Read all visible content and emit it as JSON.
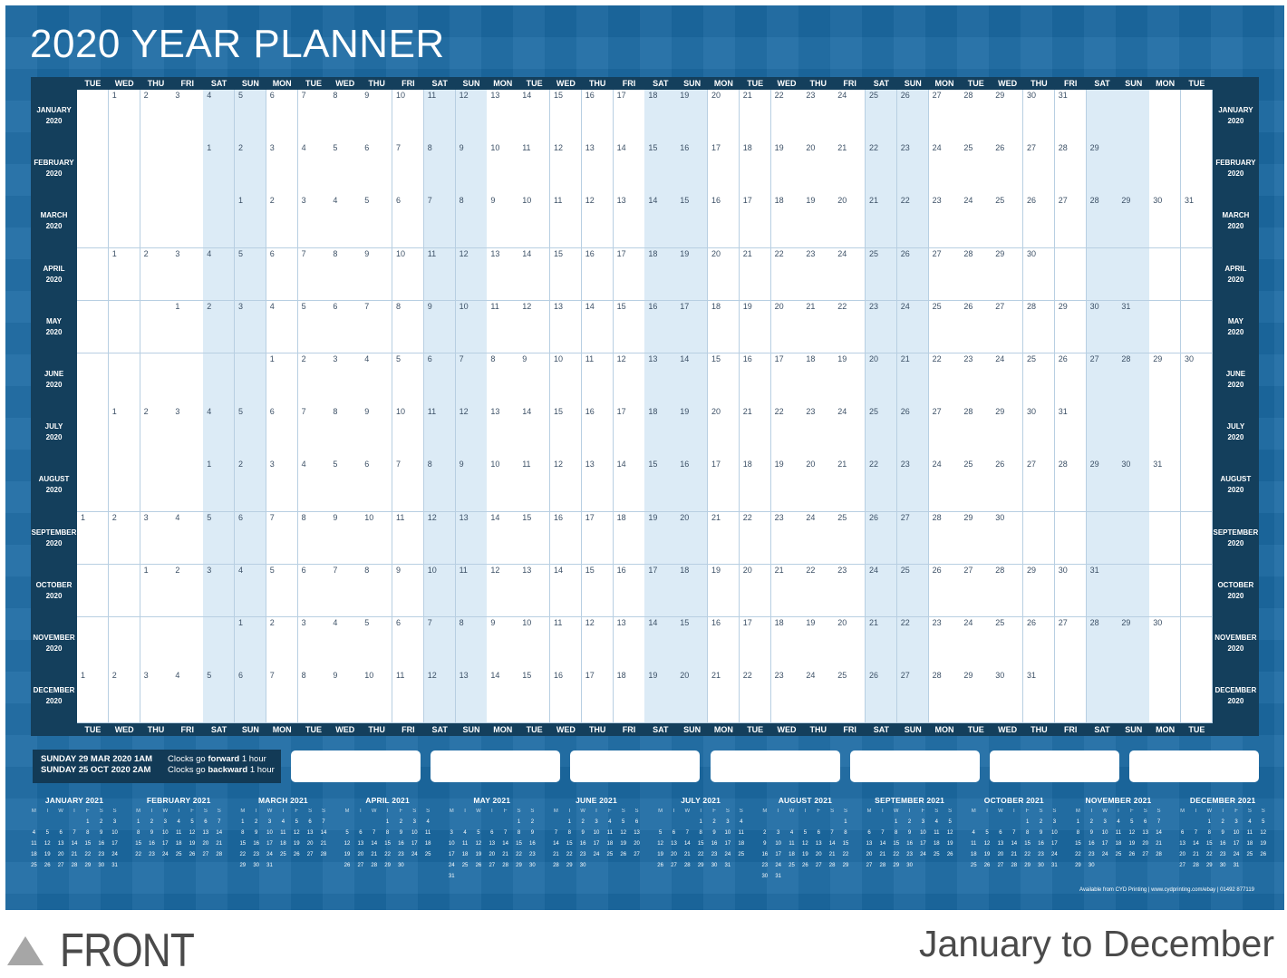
{
  "title": "2020 YEAR PLANNER",
  "day_headers": [
    "TUE",
    "WED",
    "THU",
    "FRI",
    "SAT",
    "SUN",
    "MON",
    "TUE",
    "WED",
    "THU",
    "FRI",
    "SAT",
    "SUN",
    "MON",
    "TUE",
    "WED",
    "THU",
    "FRI",
    "SAT",
    "SUN",
    "MON",
    "TUE",
    "WED",
    "THU",
    "FRI",
    "SAT",
    "SUN",
    "MON",
    "TUE",
    "WED",
    "THU",
    "FRI",
    "SAT",
    "SUN",
    "MON",
    "TUE"
  ],
  "months": [
    {
      "name": "JANUARY",
      "year": "2020",
      "start": 1,
      "days": 31
    },
    {
      "name": "FEBRUARY",
      "year": "2020",
      "start": 4,
      "days": 29
    },
    {
      "name": "MARCH",
      "year": "2020",
      "start": 5,
      "days": 31
    },
    {
      "name": "APRIL",
      "year": "2020",
      "start": 1,
      "days": 30
    },
    {
      "name": "MAY",
      "year": "2020",
      "start": 3,
      "days": 31
    },
    {
      "name": "JUNE",
      "year": "2020",
      "start": 6,
      "days": 30
    },
    {
      "name": "JULY",
      "year": "2020",
      "start": 1,
      "days": 31
    },
    {
      "name": "AUGUST",
      "year": "2020",
      "start": 4,
      "days": 31
    },
    {
      "name": "SEPTEMBER",
      "year": "2020",
      "start": 0,
      "days": 30
    },
    {
      "name": "OCTOBER",
      "year": "2020",
      "start": 2,
      "days": 31
    },
    {
      "name": "NOVEMBER",
      "year": "2020",
      "start": 5,
      "days": 30
    },
    {
      "name": "DECEMBER",
      "year": "2020",
      "start": 0,
      "days": 31
    }
  ],
  "dst": [
    {
      "date": "SUNDAY 29 MAR 2020  1AM",
      "text_a": "Clocks go ",
      "text_b": "forward",
      "text_c": " 1 hour"
    },
    {
      "date": "SUNDAY 25 OCT 2020  2AM",
      "text_a": "Clocks go ",
      "text_b": "backward",
      "text_c": " 1 hour"
    }
  ],
  "notes_count": 7,
  "mini_dow": [
    "M",
    "T",
    "W",
    "T",
    "F",
    "S",
    "S"
  ],
  "mini_calendars": [
    {
      "title": "JANUARY 2021",
      "offset": 4,
      "days": 31
    },
    {
      "title": "FEBRUARY 2021",
      "offset": 0,
      "days": 28
    },
    {
      "title": "MARCH 2021",
      "offset": 0,
      "days": 31
    },
    {
      "title": "APRIL 2021",
      "offset": 3,
      "days": 30
    },
    {
      "title": "MAY 2021",
      "offset": 5,
      "days": 31
    },
    {
      "title": "JUNE 2021",
      "offset": 1,
      "days": 30
    },
    {
      "title": "JULY 2021",
      "offset": 3,
      "days": 31
    },
    {
      "title": "AUGUST 2021",
      "offset": 6,
      "days": 31
    },
    {
      "title": "SEPTEMBER 2021",
      "offset": 2,
      "days": 30
    },
    {
      "title": "OCTOBER 2021",
      "offset": 4,
      "days": 31
    },
    {
      "title": "NOVEMBER 2021",
      "offset": 0,
      "days": 30
    },
    {
      "title": "DECEMBER 2021",
      "offset": 2,
      "days": 31
    }
  ],
  "credit": "Available from CYD Printing  |  www.cydprinting.com/ebay  |  01492 877119",
  "front_label": "FRONT",
  "subtitle": "January to December"
}
